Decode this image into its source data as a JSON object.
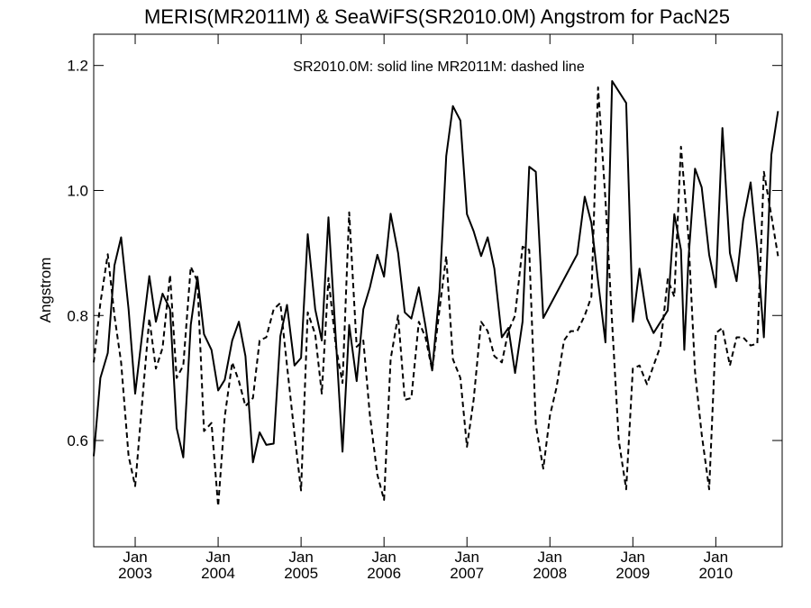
{
  "chart_data": {
    "type": "line",
    "title": "MERIS(MR2011M) & SeaWiFS(SR2010.0M)  Angstrom for PacN25",
    "legend_text": "SR2010.0M: solid line   MR2011M: dashed line",
    "ylabel": "Angstrom",
    "xlabel": "",
    "xlim": [
      2002.5,
      2010.8
    ],
    "ylim": [
      0.43,
      1.25
    ],
    "yticks": [
      {
        "value": 0.6,
        "label": "0.6"
      },
      {
        "value": 0.8,
        "label": "0.8"
      },
      {
        "value": 1.0,
        "label": "1.0"
      },
      {
        "value": 1.2,
        "label": "1.2"
      }
    ],
    "xticks": [
      {
        "value": 2003.0,
        "month": "Jan",
        "year": "2003"
      },
      {
        "value": 2004.0,
        "month": "Jan",
        "year": "2004"
      },
      {
        "value": 2005.0,
        "month": "Jan",
        "year": "2005"
      },
      {
        "value": 2006.0,
        "month": "Jan",
        "year": "2006"
      },
      {
        "value": 2007.0,
        "month": "Jan",
        "year": "2007"
      },
      {
        "value": 2008.0,
        "month": "Jan",
        "year": "2008"
      },
      {
        "value": 2009.0,
        "month": "Jan",
        "year": "2009"
      },
      {
        "value": 2010.0,
        "month": "Jan",
        "year": "2010"
      }
    ],
    "series": [
      {
        "name": "SR2010.0M",
        "style": "solid",
        "color": "#000000",
        "points": [
          [
            2002.5,
            0.575
          ],
          [
            2002.58,
            0.7
          ],
          [
            2002.67,
            0.74
          ],
          [
            2002.75,
            0.88
          ],
          [
            2002.83,
            0.925
          ],
          [
            2002.92,
            0.81
          ],
          [
            2003.0,
            0.675
          ],
          [
            2003.08,
            0.765
          ],
          [
            2003.17,
            0.863
          ],
          [
            2003.25,
            0.79
          ],
          [
            2003.33,
            0.835
          ],
          [
            2003.42,
            0.81
          ],
          [
            2003.5,
            0.62
          ],
          [
            2003.58,
            0.573
          ],
          [
            2003.67,
            0.785
          ],
          [
            2003.75,
            0.862
          ],
          [
            2003.83,
            0.77
          ],
          [
            2003.92,
            0.745
          ],
          [
            2004.0,
            0.68
          ],
          [
            2004.08,
            0.697
          ],
          [
            2004.17,
            0.76
          ],
          [
            2004.25,
            0.79
          ],
          [
            2004.33,
            0.735
          ],
          [
            2004.42,
            0.565
          ],
          [
            2004.5,
            0.613
          ],
          [
            2004.58,
            0.593
          ],
          [
            2004.67,
            0.595
          ],
          [
            2004.75,
            0.767
          ],
          [
            2004.83,
            0.817
          ],
          [
            2004.92,
            0.72
          ],
          [
            2005.0,
            0.732
          ],
          [
            2005.08,
            0.93
          ],
          [
            2005.17,
            0.81
          ],
          [
            2005.25,
            0.76
          ],
          [
            2005.33,
            0.957
          ],
          [
            2005.42,
            0.76
          ],
          [
            2005.5,
            0.582
          ],
          [
            2005.58,
            0.785
          ],
          [
            2005.67,
            0.695
          ],
          [
            2005.75,
            0.81
          ],
          [
            2005.83,
            0.845
          ],
          [
            2005.92,
            0.897
          ],
          [
            2006.0,
            0.862
          ],
          [
            2006.08,
            0.963
          ],
          [
            2006.17,
            0.9
          ],
          [
            2006.25,
            0.805
          ],
          [
            2006.33,
            0.795
          ],
          [
            2006.42,
            0.845
          ],
          [
            2006.5,
            0.783
          ],
          [
            2006.58,
            0.712
          ],
          [
            2006.67,
            0.84
          ],
          [
            2006.75,
            1.055
          ],
          [
            2006.83,
            1.135
          ],
          [
            2006.92,
            1.112
          ],
          [
            2007.0,
            0.962
          ],
          [
            2007.08,
            0.935
          ],
          [
            2007.17,
            0.895
          ],
          [
            2007.25,
            0.925
          ],
          [
            2007.33,
            0.875
          ],
          [
            2007.42,
            0.765
          ],
          [
            2007.5,
            0.78
          ],
          [
            2007.58,
            0.708
          ],
          [
            2007.67,
            0.79
          ],
          [
            2007.75,
            1.038
          ],
          [
            2007.83,
            1.03
          ],
          [
            2007.92,
            0.796
          ],
          [
            2008.33,
            0.898
          ],
          [
            2008.42,
            0.99
          ],
          [
            2008.5,
            0.948
          ],
          [
            2008.58,
            0.855
          ],
          [
            2008.67,
            0.757
          ],
          [
            2008.75,
            1.175
          ],
          [
            2008.92,
            1.14
          ],
          [
            2009.0,
            0.79
          ],
          [
            2009.08,
            0.875
          ],
          [
            2009.17,
            0.795
          ],
          [
            2009.25,
            0.772
          ],
          [
            2009.42,
            0.808
          ],
          [
            2009.5,
            0.962
          ],
          [
            2009.58,
            0.905
          ],
          [
            2009.62,
            0.745
          ],
          [
            2009.67,
            0.89
          ],
          [
            2009.75,
            1.035
          ],
          [
            2009.83,
            1.005
          ],
          [
            2009.92,
            0.897
          ],
          [
            2010.0,
            0.845
          ],
          [
            2010.08,
            1.1
          ],
          [
            2010.17,
            0.9
          ],
          [
            2010.25,
            0.855
          ],
          [
            2010.33,
            0.952
          ],
          [
            2010.42,
            1.013
          ],
          [
            2010.5,
            0.905
          ],
          [
            2010.58,
            0.765
          ],
          [
            2010.67,
            1.057
          ],
          [
            2010.75,
            1.127
          ]
        ]
      },
      {
        "name": "MR2011M",
        "style": "dashed",
        "color": "#000000",
        "points": [
          [
            2002.5,
            0.725
          ],
          [
            2002.58,
            0.82
          ],
          [
            2002.67,
            0.898
          ],
          [
            2002.75,
            0.8
          ],
          [
            2002.83,
            0.725
          ],
          [
            2002.92,
            0.575
          ],
          [
            2003.0,
            0.527
          ],
          [
            2003.08,
            0.655
          ],
          [
            2003.17,
            0.795
          ],
          [
            2003.25,
            0.715
          ],
          [
            2003.33,
            0.748
          ],
          [
            2003.42,
            0.865
          ],
          [
            2003.5,
            0.7
          ],
          [
            2003.58,
            0.72
          ],
          [
            2003.67,
            0.878
          ],
          [
            2003.75,
            0.855
          ],
          [
            2003.83,
            0.615
          ],
          [
            2003.92,
            0.628
          ],
          [
            2004.0,
            0.495
          ],
          [
            2004.08,
            0.638
          ],
          [
            2004.17,
            0.725
          ],
          [
            2004.25,
            0.695
          ],
          [
            2004.33,
            0.655
          ],
          [
            2004.42,
            0.668
          ],
          [
            2004.5,
            0.76
          ],
          [
            2004.58,
            0.765
          ],
          [
            2004.67,
            0.81
          ],
          [
            2004.75,
            0.82
          ],
          [
            2004.83,
            0.72
          ],
          [
            2004.92,
            0.61
          ],
          [
            2005.0,
            0.52
          ],
          [
            2005.08,
            0.805
          ],
          [
            2005.17,
            0.77
          ],
          [
            2005.25,
            0.675
          ],
          [
            2005.33,
            0.86
          ],
          [
            2005.42,
            0.75
          ],
          [
            2005.5,
            0.692
          ],
          [
            2005.58,
            0.965
          ],
          [
            2005.67,
            0.75
          ],
          [
            2005.75,
            0.76
          ],
          [
            2005.83,
            0.64
          ],
          [
            2005.92,
            0.545
          ],
          [
            2006.0,
            0.505
          ],
          [
            2006.08,
            0.73
          ],
          [
            2006.17,
            0.8
          ],
          [
            2006.25,
            0.665
          ],
          [
            2006.33,
            0.668
          ],
          [
            2006.42,
            0.79
          ],
          [
            2006.5,
            0.765
          ],
          [
            2006.58,
            0.712
          ],
          [
            2006.67,
            0.81
          ],
          [
            2006.75,
            0.895
          ],
          [
            2006.83,
            0.73
          ],
          [
            2006.92,
            0.7
          ],
          [
            2007.0,
            0.59
          ],
          [
            2007.08,
            0.665
          ],
          [
            2007.17,
            0.79
          ],
          [
            2007.25,
            0.775
          ],
          [
            2007.33,
            0.735
          ],
          [
            2007.42,
            0.725
          ],
          [
            2007.5,
            0.775
          ],
          [
            2007.58,
            0.8
          ],
          [
            2007.67,
            0.91
          ],
          [
            2007.75,
            0.905
          ],
          [
            2007.83,
            0.625
          ],
          [
            2007.92,
            0.555
          ],
          [
            2008.0,
            0.64
          ],
          [
            2008.08,
            0.685
          ],
          [
            2008.17,
            0.76
          ],
          [
            2008.25,
            0.775
          ],
          [
            2008.33,
            0.775
          ],
          [
            2008.42,
            0.8
          ],
          [
            2008.5,
            0.83
          ],
          [
            2008.58,
            1.165
          ],
          [
            2008.67,
            0.985
          ],
          [
            2008.75,
            0.788
          ],
          [
            2008.83,
            0.6
          ],
          [
            2008.92,
            0.522
          ],
          [
            2009.0,
            0.715
          ],
          [
            2009.08,
            0.72
          ],
          [
            2009.17,
            0.69
          ],
          [
            2009.25,
            0.72
          ],
          [
            2009.33,
            0.75
          ],
          [
            2009.42,
            0.858
          ],
          [
            2009.5,
            0.83
          ],
          [
            2009.58,
            1.07
          ],
          [
            2009.67,
            0.925
          ],
          [
            2009.75,
            0.71
          ],
          [
            2009.83,
            0.61
          ],
          [
            2009.92,
            0.522
          ],
          [
            2010.0,
            0.772
          ],
          [
            2010.08,
            0.78
          ],
          [
            2010.17,
            0.72
          ],
          [
            2010.25,
            0.765
          ],
          [
            2010.33,
            0.765
          ],
          [
            2010.42,
            0.752
          ],
          [
            2010.5,
            0.755
          ],
          [
            2010.58,
            1.03
          ],
          [
            2010.67,
            0.96
          ],
          [
            2010.75,
            0.895
          ]
        ]
      }
    ]
  }
}
